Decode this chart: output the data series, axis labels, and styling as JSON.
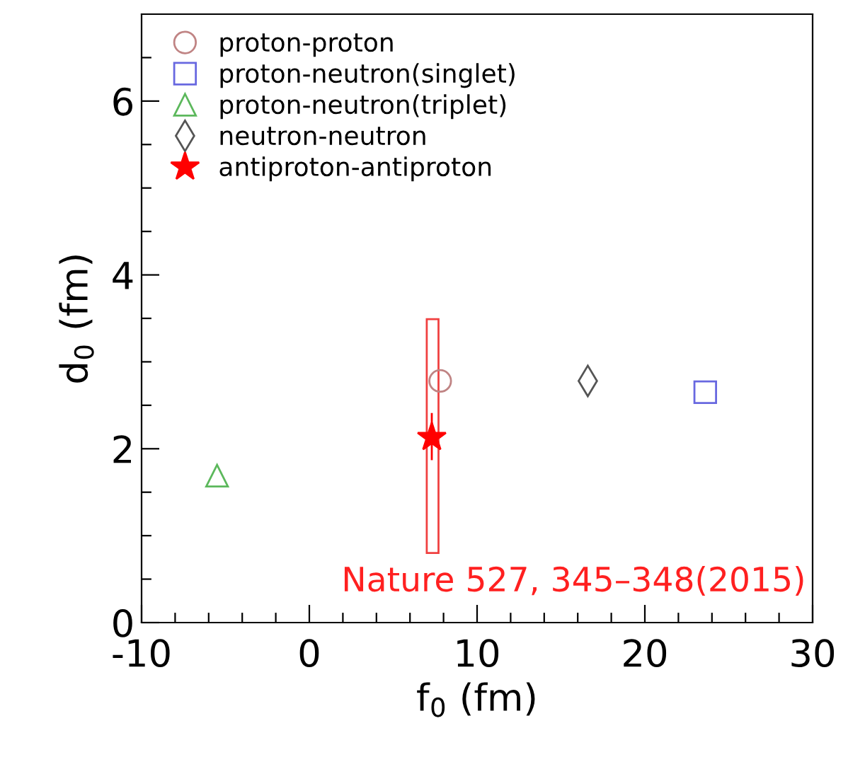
{
  "chart_data": {
    "type": "scatter",
    "xlabel": "f$_{0}$ (fm)",
    "ylabel": "d$_{0}$ (fm)",
    "xlim": [
      -10,
      30
    ],
    "ylim": [
      0,
      7
    ],
    "xticks": [
      -10,
      {
        "value": -8,
        "label": null
      },
      {
        "value": -6,
        "label": null
      },
      {
        "value": -4,
        "label": null
      },
      {
        "value": -2,
        "label": null
      },
      0,
      {
        "value": 2,
        "label": null
      },
      {
        "value": 4,
        "label": null
      },
      {
        "value": 6,
        "label": null
      },
      {
        "value": 8,
        "label": null
      },
      10,
      {
        "value": 12,
        "label": null
      },
      {
        "value": 14,
        "label": null
      },
      {
        "value": 16,
        "label": null
      },
      {
        "value": 18,
        "label": null
      },
      20,
      {
        "value": 22,
        "label": null
      },
      {
        "value": 24,
        "label": null
      },
      {
        "value": 26,
        "label": null
      },
      {
        "value": 28,
        "label": null
      },
      30
    ],
    "yticks": [
      0,
      {
        "value": 0.5,
        "label": null
      },
      {
        "value": 1,
        "label": null
      },
      {
        "value": 1.5,
        "label": null
      },
      2,
      {
        "value": 2.5,
        "label": null
      },
      {
        "value": 3,
        "label": null
      },
      {
        "value": 3.5,
        "label": null
      },
      4,
      {
        "value": 4.5,
        "label": null
      },
      {
        "value": 5,
        "label": null
      },
      {
        "value": 5.5,
        "label": null
      },
      6,
      {
        "value": 6.5,
        "label": null
      }
    ],
    "grid": false,
    "legend": "top left",
    "series": [
      {
        "name": "proton-proton",
        "color": "#c08484",
        "marker": "circle",
        "x": [
          7.8
        ],
        "values": [
          2.78
        ]
      },
      {
        "name": "proton-neutron(singlet)",
        "color": "#6868e0",
        "marker": "square",
        "x": [
          23.6
        ],
        "values": [
          2.65
        ]
      },
      {
        "name": "proton-neutron(triplet)",
        "color": "#5cb85c",
        "marker": "triangle",
        "x": [
          -5.5
        ],
        "values": [
          1.69
        ]
      },
      {
        "name": "neutron-neutron",
        "color": "#555555",
        "marker": "diamond",
        "x": [
          16.6
        ],
        "values": [
          2.78
        ]
      },
      {
        "type": "bar",
        "color": "#f04040",
        "x": [
          7.35
        ],
        "base": [
          0.8
        ],
        "values": [
          2.69
        ]
      },
      {
        "name": "antiproton-antiproton",
        "color": "#ff0000",
        "marker": "star",
        "x": [
          7.3
        ],
        "values": [
          2.13
        ],
        "errors": [
          [
            1.88,
            2.4
          ]
        ]
      }
    ],
    "annotations": [
      "Nature 527, 345–348(2015)"
    ]
  }
}
